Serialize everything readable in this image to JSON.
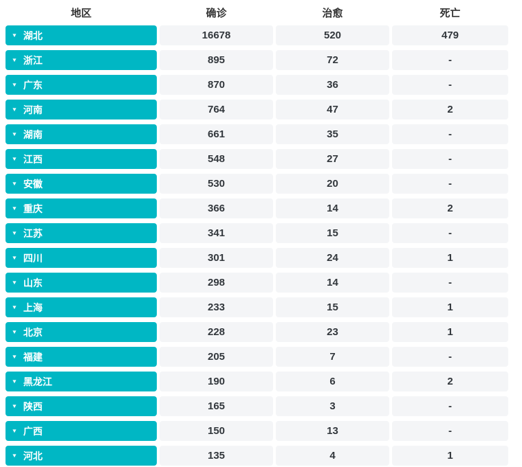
{
  "icons": {
    "collapse": "▼"
  },
  "colors": {
    "accent": "#00b7c4",
    "cell_bg": "#f4f5f7",
    "header_text": "#333333",
    "value_text": "#32373c",
    "button_text": "#ffffff"
  },
  "table": {
    "columns": [
      "地区",
      "确诊",
      "治愈",
      "死亡"
    ],
    "rows": [
      {
        "region": "湖北",
        "confirmed": "16678",
        "cured": "520",
        "deaths": "479"
      },
      {
        "region": "浙江",
        "confirmed": "895",
        "cured": "72",
        "deaths": "-"
      },
      {
        "region": "广东",
        "confirmed": "870",
        "cured": "36",
        "deaths": "-"
      },
      {
        "region": "河南",
        "confirmed": "764",
        "cured": "47",
        "deaths": "2"
      },
      {
        "region": "湖南",
        "confirmed": "661",
        "cured": "35",
        "deaths": "-"
      },
      {
        "region": "江西",
        "confirmed": "548",
        "cured": "27",
        "deaths": "-"
      },
      {
        "region": "安徽",
        "confirmed": "530",
        "cured": "20",
        "deaths": "-"
      },
      {
        "region": "重庆",
        "confirmed": "366",
        "cured": "14",
        "deaths": "2"
      },
      {
        "region": "江苏",
        "confirmed": "341",
        "cured": "15",
        "deaths": "-"
      },
      {
        "region": "四川",
        "confirmed": "301",
        "cured": "24",
        "deaths": "1"
      },
      {
        "region": "山东",
        "confirmed": "298",
        "cured": "14",
        "deaths": "-"
      },
      {
        "region": "上海",
        "confirmed": "233",
        "cured": "15",
        "deaths": "1"
      },
      {
        "region": "北京",
        "confirmed": "228",
        "cured": "23",
        "deaths": "1"
      },
      {
        "region": "福建",
        "confirmed": "205",
        "cured": "7",
        "deaths": "-"
      },
      {
        "region": "黑龙江",
        "confirmed": "190",
        "cured": "6",
        "deaths": "2"
      },
      {
        "region": "陕西",
        "confirmed": "165",
        "cured": "3",
        "deaths": "-"
      },
      {
        "region": "广西",
        "confirmed": "150",
        "cured": "13",
        "deaths": "-"
      },
      {
        "region": "河北",
        "confirmed": "135",
        "cured": "4",
        "deaths": "1"
      }
    ]
  }
}
